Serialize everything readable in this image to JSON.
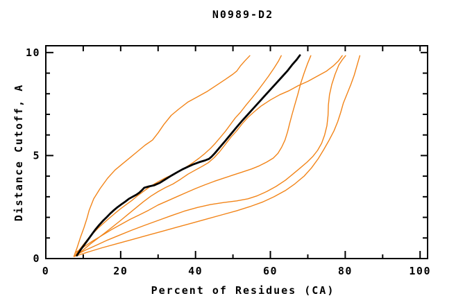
{
  "page": {
    "background": "#ffffff"
  },
  "chart_data": {
    "type": "line",
    "title": "N0989-D2",
    "xlabel": "Percent of Residues (CA)",
    "ylabel": "Distance Cutoff, A",
    "xlim": [
      0,
      102
    ],
    "ylim": [
      0,
      10.33
    ],
    "x_major_ticks": [
      0,
      20,
      40,
      60,
      80,
      100
    ],
    "x_minor_ticks": [
      10,
      30,
      50,
      70,
      90
    ],
    "x_top_ticks": [
      10,
      20,
      30,
      40,
      50,
      60,
      70,
      80,
      90,
      100
    ],
    "y_major_ticks": [
      0,
      5,
      10
    ],
    "y_minor_ticks": [
      1,
      2,
      3,
      4,
      6,
      7,
      8,
      9
    ],
    "grid": false,
    "legend": null,
    "colors": {
      "model_line": "#f28418",
      "reference_line": "#000000",
      "frame": "#000000"
    },
    "series": [
      {
        "name": "orange-1-leftmost",
        "color": "#f28418",
        "width": 1.4,
        "points": [
          [
            7.5,
            0.1
          ],
          [
            8.3,
            0.5
          ],
          [
            9.2,
            1.0
          ],
          [
            10.2,
            1.5
          ],
          [
            11.0,
            1.95
          ],
          [
            11.6,
            2.35
          ],
          [
            12.8,
            2.9
          ],
          [
            14.5,
            3.4
          ],
          [
            16.5,
            3.9
          ],
          [
            18.5,
            4.3
          ],
          [
            20.5,
            4.6
          ],
          [
            22.5,
            4.9
          ],
          [
            24.5,
            5.2
          ],
          [
            26.5,
            5.5
          ],
          [
            28.5,
            5.75
          ],
          [
            30,
            6.1
          ],
          [
            31.5,
            6.5
          ],
          [
            33.5,
            6.95
          ],
          [
            35.5,
            7.25
          ],
          [
            38,
            7.6
          ],
          [
            40.5,
            7.85
          ],
          [
            43,
            8.1
          ],
          [
            45.5,
            8.4
          ],
          [
            48,
            8.7
          ],
          [
            50,
            8.95
          ],
          [
            51,
            9.1
          ],
          [
            52,
            9.35
          ],
          [
            53.2,
            9.6
          ],
          [
            54.5,
            9.85
          ]
        ]
      },
      {
        "name": "orange-2-left-companion",
        "color": "#f28418",
        "width": 1.4,
        "points": [
          [
            8.0,
            0.2
          ],
          [
            9.5,
            0.55
          ],
          [
            11,
            0.9
          ],
          [
            12.5,
            1.2
          ],
          [
            14,
            1.48
          ],
          [
            15.5,
            1.73
          ],
          [
            17,
            1.97
          ],
          [
            18.5,
            2.2
          ],
          [
            20,
            2.42
          ],
          [
            21.5,
            2.62
          ],
          [
            23,
            2.82
          ],
          [
            24.5,
            3.05
          ],
          [
            26,
            3.25
          ],
          [
            27.5,
            3.45
          ],
          [
            29,
            3.62
          ],
          [
            30.5,
            3.78
          ],
          [
            32,
            3.92
          ],
          [
            33.5,
            4.04
          ],
          [
            35,
            4.18
          ],
          [
            36.5,
            4.33
          ],
          [
            38,
            4.5
          ],
          [
            39.5,
            4.68
          ],
          [
            41,
            4.88
          ],
          [
            42.5,
            5.1
          ],
          [
            44,
            5.35
          ],
          [
            45.3,
            5.6
          ],
          [
            46.6,
            5.88
          ],
          [
            48,
            6.18
          ],
          [
            49.3,
            6.5
          ],
          [
            50.6,
            6.82
          ],
          [
            52,
            7.1
          ],
          [
            53.5,
            7.45
          ],
          [
            55,
            7.78
          ],
          [
            56.5,
            8.12
          ],
          [
            58,
            8.48
          ],
          [
            59.5,
            8.85
          ],
          [
            61,
            9.25
          ],
          [
            62.2,
            9.6
          ],
          [
            62.9,
            9.85
          ]
        ]
      },
      {
        "name": "orange-3-right-companion",
        "color": "#f28418",
        "width": 1.4,
        "points": [
          [
            8.2,
            0.15
          ],
          [
            10,
            0.42
          ],
          [
            12,
            0.72
          ],
          [
            14,
            1.0
          ],
          [
            16,
            1.28
          ],
          [
            18,
            1.56
          ],
          [
            20,
            1.85
          ],
          [
            22,
            2.15
          ],
          [
            24,
            2.45
          ],
          [
            26,
            2.75
          ],
          [
            28,
            3.02
          ],
          [
            30,
            3.25
          ],
          [
            32,
            3.45
          ],
          [
            34,
            3.62
          ],
          [
            36,
            3.85
          ],
          [
            38,
            4.1
          ],
          [
            40,
            4.3
          ],
          [
            41.8,
            4.48
          ],
          [
            43.4,
            4.65
          ],
          [
            45,
            4.9
          ],
          [
            46.5,
            5.2
          ],
          [
            48,
            5.55
          ],
          [
            49.5,
            5.9
          ],
          [
            51,
            6.2
          ],
          [
            52.5,
            6.55
          ],
          [
            54,
            6.85
          ],
          [
            55.5,
            7.1
          ],
          [
            57.5,
            7.4
          ],
          [
            60,
            7.7
          ],
          [
            62.5,
            7.95
          ],
          [
            65,
            8.15
          ],
          [
            67.5,
            8.4
          ],
          [
            70,
            8.6
          ],
          [
            72.5,
            8.85
          ],
          [
            75,
            9.1
          ],
          [
            76.8,
            9.35
          ],
          [
            78.2,
            9.6
          ],
          [
            79.2,
            9.85
          ]
        ]
      },
      {
        "name": "orange-4-sigmoid",
        "color": "#f28418",
        "width": 1.4,
        "points": [
          [
            8.0,
            0.3
          ],
          [
            10,
            0.55
          ],
          [
            12.5,
            0.85
          ],
          [
            15,
            1.12
          ],
          [
            17.5,
            1.4
          ],
          [
            20,
            1.65
          ],
          [
            22.5,
            1.9
          ],
          [
            25,
            2.12
          ],
          [
            27.5,
            2.35
          ],
          [
            30,
            2.6
          ],
          [
            32.5,
            2.8
          ],
          [
            35,
            3.0
          ],
          [
            37.5,
            3.2
          ],
          [
            40,
            3.4
          ],
          [
            42.5,
            3.58
          ],
          [
            45,
            3.75
          ],
          [
            47.5,
            3.9
          ],
          [
            50,
            4.05
          ],
          [
            52.5,
            4.2
          ],
          [
            55,
            4.35
          ],
          [
            57,
            4.5
          ],
          [
            59,
            4.68
          ],
          [
            60.8,
            4.88
          ],
          [
            62,
            5.1
          ],
          [
            63,
            5.4
          ],
          [
            63.9,
            5.75
          ],
          [
            64.6,
            6.15
          ],
          [
            65.2,
            6.6
          ],
          [
            65.8,
            7.0
          ],
          [
            66.5,
            7.45
          ],
          [
            67.3,
            7.95
          ],
          [
            68.1,
            8.5
          ],
          [
            69,
            9.0
          ],
          [
            69.9,
            9.45
          ],
          [
            70.8,
            9.85
          ]
        ]
      },
      {
        "name": "orange-5-sigmoid",
        "color": "#f28418",
        "width": 1.4,
        "points": [
          [
            7.8,
            0.15
          ],
          [
            10.5,
            0.4
          ],
          [
            13.5,
            0.65
          ],
          [
            16.5,
            0.9
          ],
          [
            19.5,
            1.12
          ],
          [
            23,
            1.38
          ],
          [
            26.5,
            1.62
          ],
          [
            30,
            1.85
          ],
          [
            33.5,
            2.08
          ],
          [
            37,
            2.3
          ],
          [
            40.5,
            2.48
          ],
          [
            44,
            2.62
          ],
          [
            47.5,
            2.72
          ],
          [
            51,
            2.8
          ],
          [
            54,
            2.9
          ],
          [
            56.5,
            3.05
          ],
          [
            59,
            3.25
          ],
          [
            61.5,
            3.5
          ],
          [
            64,
            3.8
          ],
          [
            66,
            4.1
          ],
          [
            68,
            4.4
          ],
          [
            69.8,
            4.68
          ],
          [
            71.3,
            4.95
          ],
          [
            72.6,
            5.25
          ],
          [
            73.7,
            5.6
          ],
          [
            74.5,
            6.0
          ],
          [
            75.1,
            6.45
          ],
          [
            75.4,
            6.95
          ],
          [
            75.5,
            7.45
          ],
          [
            75.8,
            7.95
          ],
          [
            76.4,
            8.45
          ],
          [
            77.3,
            8.95
          ],
          [
            78.3,
            9.4
          ],
          [
            79.2,
            9.65
          ],
          [
            80.1,
            9.85
          ]
        ]
      },
      {
        "name": "orange-6-rightmost",
        "color": "#f28418",
        "width": 1.4,
        "points": [
          [
            7.6,
            0.1
          ],
          [
            11,
            0.3
          ],
          [
            15,
            0.52
          ],
          [
            19,
            0.72
          ],
          [
            23,
            0.92
          ],
          [
            27,
            1.12
          ],
          [
            31,
            1.32
          ],
          [
            35,
            1.52
          ],
          [
            39,
            1.72
          ],
          [
            43,
            1.92
          ],
          [
            47,
            2.12
          ],
          [
            51,
            2.32
          ],
          [
            54.5,
            2.52
          ],
          [
            58,
            2.75
          ],
          [
            61,
            3.0
          ],
          [
            64,
            3.3
          ],
          [
            66.5,
            3.62
          ],
          [
            69,
            4.0
          ],
          [
            71,
            4.4
          ],
          [
            72.8,
            4.85
          ],
          [
            74.3,
            5.3
          ],
          [
            75.7,
            5.75
          ],
          [
            77,
            6.2
          ],
          [
            78,
            6.65
          ],
          [
            78.8,
            7.1
          ],
          [
            79.5,
            7.55
          ],
          [
            80.5,
            8.0
          ],
          [
            81.5,
            8.45
          ],
          [
            82.4,
            8.9
          ],
          [
            83.2,
            9.4
          ],
          [
            83.9,
            9.85
          ]
        ]
      },
      {
        "name": "black-main",
        "color": "#000000",
        "width": 2.8,
        "points": [
          [
            8.3,
            0.15
          ],
          [
            9.2,
            0.4
          ],
          [
            10.2,
            0.65
          ],
          [
            11.2,
            0.9
          ],
          [
            12.2,
            1.15
          ],
          [
            13.2,
            1.4
          ],
          [
            14.2,
            1.62
          ],
          [
            15.2,
            1.82
          ],
          [
            16.2,
            2.0
          ],
          [
            17.2,
            2.18
          ],
          [
            18.2,
            2.35
          ],
          [
            19.2,
            2.5
          ],
          [
            20.2,
            2.63
          ],
          [
            21.2,
            2.76
          ],
          [
            22.2,
            2.9
          ],
          [
            23.2,
            3.0
          ],
          [
            24.2,
            3.1
          ],
          [
            25,
            3.2
          ],
          [
            25.7,
            3.32
          ],
          [
            26.3,
            3.44
          ],
          [
            27.5,
            3.5
          ],
          [
            29,
            3.56
          ],
          [
            30.5,
            3.68
          ],
          [
            32,
            3.85
          ],
          [
            33.5,
            4.02
          ],
          [
            35,
            4.18
          ],
          [
            36.5,
            4.33
          ],
          [
            38,
            4.46
          ],
          [
            39.5,
            4.58
          ],
          [
            41,
            4.68
          ],
          [
            42.5,
            4.76
          ],
          [
            43.6,
            4.84
          ],
          [
            44.3,
            4.95
          ],
          [
            45.2,
            5.12
          ],
          [
            46.5,
            5.4
          ],
          [
            48,
            5.72
          ],
          [
            49.5,
            6.05
          ],
          [
            51,
            6.38
          ],
          [
            52.5,
            6.7
          ],
          [
            54,
            7.0
          ],
          [
            55.5,
            7.3
          ],
          [
            57,
            7.6
          ],
          [
            58.5,
            7.9
          ],
          [
            60,
            8.2
          ],
          [
            61.5,
            8.5
          ],
          [
            63,
            8.8
          ],
          [
            64.5,
            9.1
          ],
          [
            65.8,
            9.4
          ],
          [
            67,
            9.65
          ],
          [
            67.9,
            9.87
          ]
        ]
      }
    ]
  }
}
